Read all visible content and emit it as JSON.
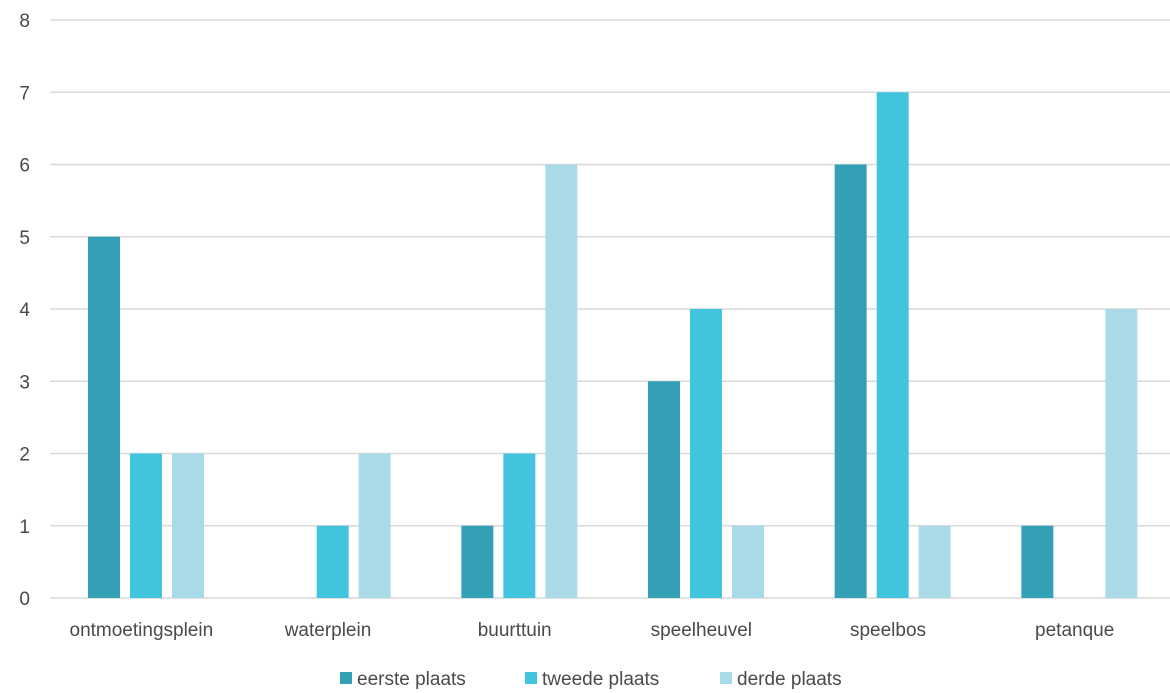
{
  "chart_data": {
    "type": "bar",
    "categories": [
      "ontmoetingsplein",
      "waterplein",
      "buurttuin",
      "speelheuvel",
      "speelbos",
      "petanque"
    ],
    "series": [
      {
        "name": "eerste plaats",
        "values": [
          5,
          0,
          1,
          3,
          6,
          1
        ],
        "color": "#34a0b6"
      },
      {
        "name": "tweede plaats",
        "values": [
          2,
          1,
          2,
          4,
          7,
          0
        ],
        "color": "#42c3de"
      },
      {
        "name": "derde plaats",
        "values": [
          2,
          2,
          6,
          1,
          1,
          4
        ],
        "color": "#a8dae8"
      }
    ],
    "ylim": [
      0,
      8
    ],
    "yticks": [
      0,
      1,
      2,
      3,
      4,
      5,
      6,
      7,
      8
    ],
    "grid": true,
    "legend_position": "bottom",
    "gridline_color": "#d9d9d9"
  }
}
